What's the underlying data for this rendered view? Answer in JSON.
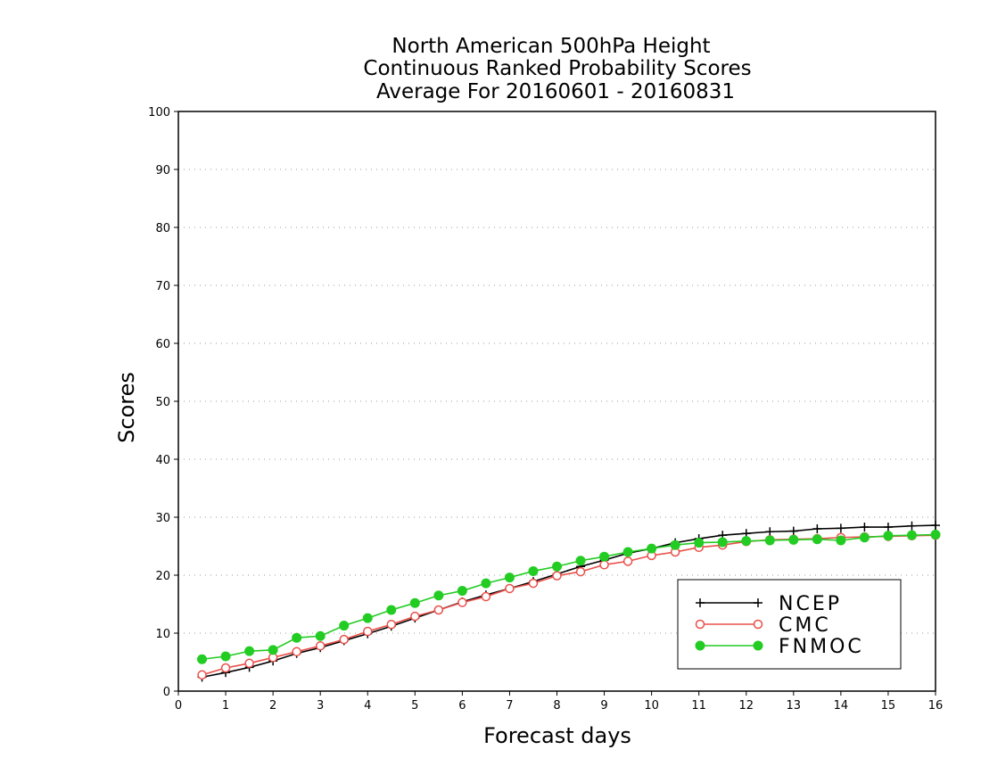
{
  "chart_data": {
    "type": "line",
    "title": [
      "North American 500hPa Height",
      "Continuous Ranked Probability Scores",
      "Average For 20160601 - 20160831"
    ],
    "xlabel": "Forecast days",
    "ylabel": "Scores",
    "xlim": [
      0,
      16
    ],
    "ylim": [
      0,
      100
    ],
    "xticks": [
      0,
      1,
      2,
      3,
      4,
      5,
      6,
      7,
      8,
      9,
      10,
      11,
      12,
      13,
      14,
      15,
      16
    ],
    "yticks": [
      0,
      10,
      20,
      30,
      40,
      50,
      60,
      70,
      80,
      90,
      100
    ],
    "grid": "horizontal dotted",
    "legend_position": "bottom-right",
    "x": [
      0.5,
      1,
      1.5,
      2,
      2.5,
      3,
      3.5,
      4,
      4.5,
      5,
      5.5,
      6,
      6.5,
      7,
      7.5,
      8,
      8.5,
      9,
      9.5,
      10,
      10.5,
      11,
      11.5,
      12,
      12.5,
      13,
      13.5,
      14,
      14.5,
      15,
      15.5,
      16
    ],
    "series": [
      {
        "name": "NCEP",
        "color": "#000000",
        "marker": "plus",
        "values": [
          2.4,
          3.2,
          4.1,
          5.2,
          6.5,
          7.5,
          8.7,
          9.9,
          11.2,
          12.6,
          14.0,
          15.4,
          16.6,
          17.7,
          18.9,
          20.2,
          21.5,
          22.6,
          23.8,
          24.6,
          25.6,
          26.3,
          26.9,
          27.2,
          27.5,
          27.6,
          28.0,
          28.1,
          28.3,
          28.3,
          28.5,
          28.6
        ]
      },
      {
        "name": "CMC",
        "color": "#e8504a",
        "marker": "open-circle",
        "values": [
          2.8,
          4.0,
          4.8,
          5.8,
          6.8,
          7.8,
          8.9,
          10.3,
          11.5,
          12.9,
          14.0,
          15.3,
          16.3,
          17.7,
          18.6,
          19.9,
          20.6,
          21.8,
          22.4,
          23.4,
          24.0,
          24.8,
          25.2,
          25.8,
          26.1,
          26.2,
          26.3,
          26.5,
          26.6,
          26.7,
          26.8,
          26.9
        ]
      },
      {
        "name": "FNMOC",
        "color": "#22cc22",
        "marker": "filled-circle",
        "values": [
          5.5,
          6.0,
          6.9,
          7.1,
          9.2,
          9.5,
          11.3,
          12.6,
          14.0,
          15.2,
          16.5,
          17.3,
          18.6,
          19.6,
          20.7,
          21.5,
          22.5,
          23.2,
          24.0,
          24.6,
          25.2,
          25.6,
          25.7,
          25.9,
          26.0,
          26.1,
          26.2,
          26.0,
          26.5,
          26.8,
          26.9,
          27.0
        ]
      }
    ]
  }
}
